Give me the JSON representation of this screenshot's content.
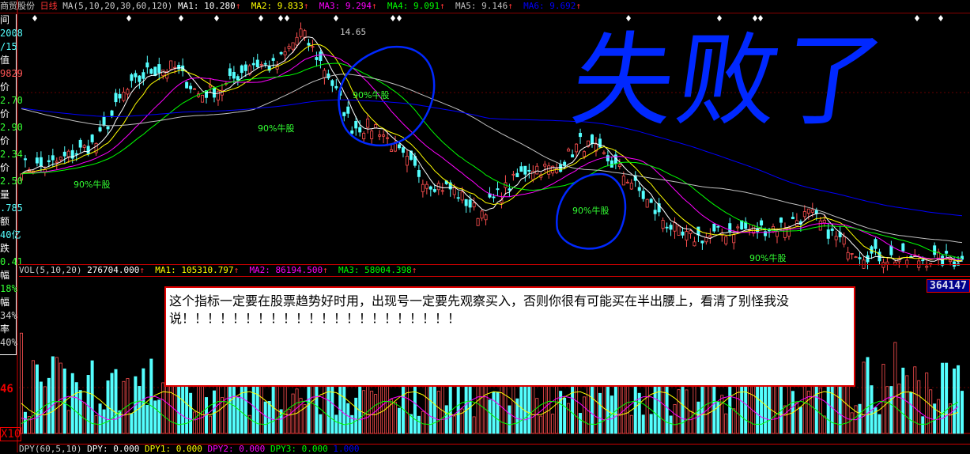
{
  "header": {
    "stock_name": "商贸股份",
    "period": "日线",
    "ma_label": "MA(5,10,20,30,60,120)",
    "ma": [
      {
        "label": "MA1:",
        "value": "10.280",
        "color": "#ffffff"
      },
      {
        "label": "MA2:",
        "value": "9.833",
        "color": "#ffff00"
      },
      {
        "label": "MA3:",
        "value": "9.294",
        "color": "#ff00ff"
      },
      {
        "label": "MA4:",
        "value": "9.091",
        "color": "#00ff00"
      },
      {
        "label": "MA5:",
        "value": "9.146",
        "color": "#c0c0c0"
      },
      {
        "label": "MA6:",
        "value": "9.692",
        "color": "#0000ff"
      }
    ],
    "arrow": "↑"
  },
  "side_panel": [
    {
      "t": "间",
      "c": "#fff"
    },
    {
      "t": "2008",
      "c": "#5ff"
    },
    {
      "t": "/15",
      "c": "#5ff"
    },
    {
      "t": "值",
      "c": "#fff"
    },
    {
      "t": "9829",
      "c": "#f55"
    },
    {
      "t": "价",
      "c": "#fff"
    },
    {
      "t": "2.70",
      "c": "#3f3"
    },
    {
      "t": "价",
      "c": "#fff"
    },
    {
      "t": "2.90",
      "c": "#3f3"
    },
    {
      "t": "价",
      "c": "#fff"
    },
    {
      "t": "2.34",
      "c": "#3f3"
    },
    {
      "t": "价",
      "c": "#fff"
    },
    {
      "t": "2.50",
      "c": "#3f3"
    },
    {
      "t": "量",
      "c": "#fff"
    },
    {
      "t": ".785",
      "c": "#5ff"
    },
    {
      "t": "额",
      "c": "#fff"
    },
    {
      "t": "40亿",
      "c": "#5ff"
    },
    {
      "t": "跌",
      "c": "#fff"
    },
    {
      "t": "0.41",
      "c": "#3f3"
    },
    {
      "t": "幅",
      "c": "#fff"
    },
    {
      "t": "18%",
      "c": "#3f3"
    },
    {
      "t": "幅",
      "c": "#fff"
    },
    {
      "t": "34%",
      "c": "#ccc"
    },
    {
      "t": "率",
      "c": "#fff"
    },
    {
      "t": "40%",
      "c": "#ccc"
    }
  ],
  "axis_labels": {
    "vol_tick": "46",
    "vol_unit": "X10"
  },
  "volume_header": {
    "label": "VOL(5,10,20)",
    "value": "276704.000",
    "ma": [
      {
        "label": "MA1:",
        "value": "105310.797",
        "color": "#ffff00"
      },
      {
        "label": "MA2:",
        "value": "86194.500",
        "color": "#ff00ff"
      },
      {
        "label": "MA3:",
        "value": "58004.398",
        "color": "#00ff00"
      }
    ]
  },
  "volume_max_label": "364147",
  "bottom_header": {
    "label": "DPY(60,5,10)",
    "items": [
      {
        "label": "DPY:",
        "value": "0.000",
        "color": "#fff"
      },
      {
        "label": "DPY1:",
        "value": "0.000",
        "color": "#ff0"
      },
      {
        "label": "DPY2:",
        "value": "0.000",
        "color": "#f0f"
      },
      {
        "label": "DPY3:",
        "value": "0.000",
        "color": "#0f0"
      },
      {
        "label": "",
        "value": "1.000",
        "color": "#00f"
      }
    ]
  },
  "signal_label": "90%牛股",
  "peak_label": "14.65",
  "handwriting": "失败了",
  "popup": {
    "text": "这个指标一定要在股票趋势好时用，出现号一定要先观察买入，否则你很有可能买在半出腰上，看清了别怪我没说！！！！！！！！！！！！！！！！！！！！！！"
  },
  "chart_data": {
    "type": "candlestick",
    "price_ylim": [
      7.2,
      15.2
    ],
    "close_path": [
      10.32,
      10.3,
      10.7,
      11.09,
      12.61,
      13.37,
      13.5,
      12.61,
      12.86,
      13.63,
      13.5,
      14.64,
      13.37,
      11.59,
      11.59,
      10.58,
      9.82,
      9.56,
      8.8,
      9.56,
      10.32,
      10.2,
      11.09,
      10.58,
      9.82,
      8.8,
      8.04,
      8.04,
      8.29,
      8.29,
      8.42,
      8.8,
      8.04,
      7.53,
      7.4,
      7.33,
      7.33,
      7.28
    ],
    "colors": {
      "up": "#ff5050",
      "down": "#54ffff",
      "ma5": "#ffffff",
      "ma10": "#ffff00",
      "ma20": "#ff00ff",
      "ma30": "#00ff00",
      "ma60": "#c0c0c0",
      "ma120": "#0000ff"
    }
  }
}
